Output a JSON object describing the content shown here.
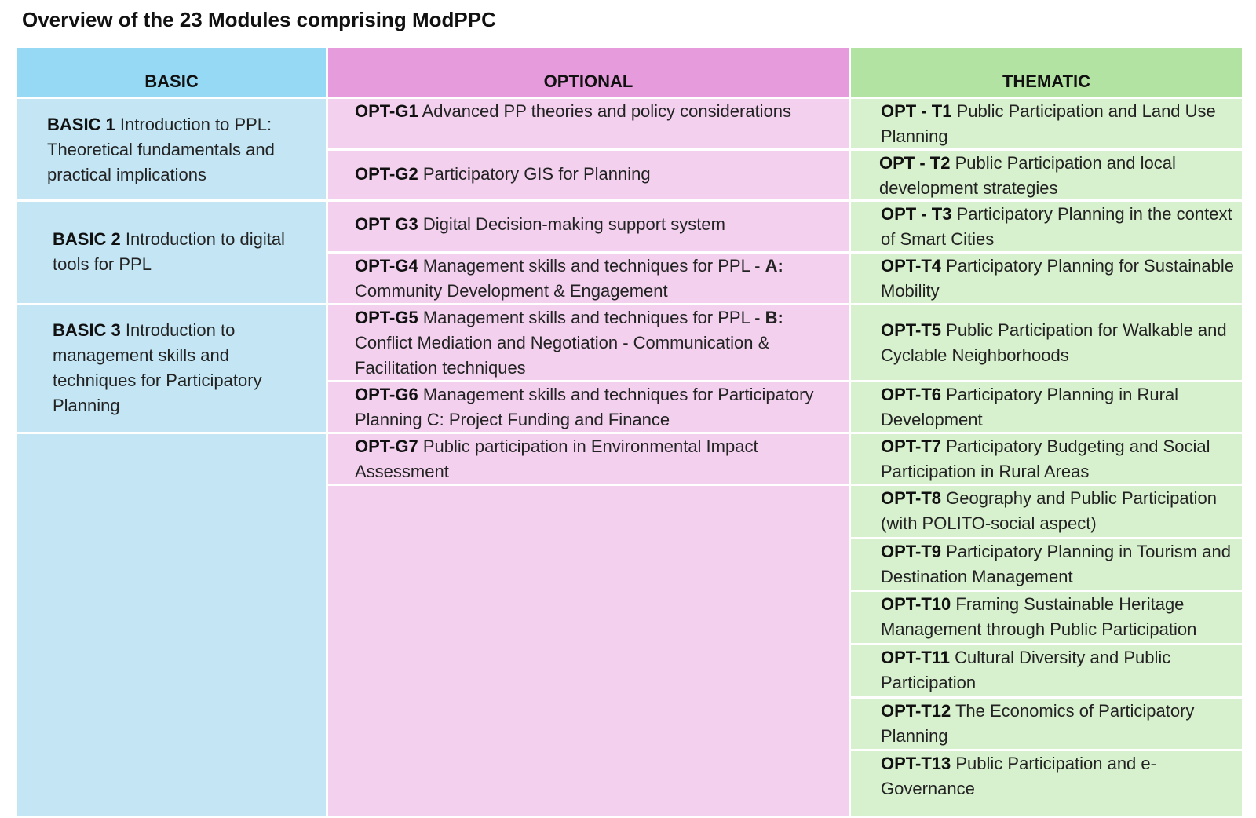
{
  "title": "Overview of the 23 Modules comprising ModPPC",
  "headers": {
    "basic": "BASIC",
    "optional": "OPTIONAL",
    "thematic": "THEMATIC"
  },
  "basic": [
    {
      "code": "BASIC 1",
      "text": "Introduction to PPL: Theoretical fundamentals and practical implications"
    },
    {
      "code": "BASIC 2",
      "text": "Introduction to digital tools for PPL"
    },
    {
      "code": "BASIC 3",
      "text": "Introduction to management skills and techniques for Participatory Planning"
    }
  ],
  "optional": [
    {
      "code": "OPT-G1",
      "text": "Advanced PP theories and policy considerations"
    },
    {
      "code": "OPT-G2",
      "text": "Participatory GIS for Planning"
    },
    {
      "code": "OPT G3",
      "text": "Digital Decision-making support system"
    },
    {
      "code": "OPT-G4",
      "text": "Management skills and techniques for PPL - ",
      "strong": "A:",
      "tail": " Community Development & Engagement"
    },
    {
      "code": "OPT-G5",
      "text": "Management skills and techniques for PPL - ",
      "strong": "B:",
      "tail": " Conflict Mediation and Negotiation - Communication & Facilitation techniques"
    },
    {
      "code": "OPT-G6",
      "text": "Management skills and techniques for Participatory Planning C: Project Funding and Finance"
    },
    {
      "code": "OPT-G7",
      "text": "Public participation in Environmental Impact Assessment"
    }
  ],
  "thematic": [
    {
      "code": "OPT - T1",
      "text": "Public Participation and Land Use Planning"
    },
    {
      "code": "OPT - T2",
      "text": "Public Participation and local development strategies"
    },
    {
      "code": "OPT - T3",
      "text": "Participatory Planning in the context of Smart Cities"
    },
    {
      "code": "OPT-T4",
      "text": "Participatory Planning for Sustainable Mobility"
    },
    {
      "code": "OPT-T5",
      "text": "Public Participation for Walkable and Cyclable Neighborhoods"
    },
    {
      "code": "OPT-T6",
      "text": "Participatory Planning in Rural Development"
    },
    {
      "code": "OPT-T7",
      "text": "Participatory Budgeting and Social Participation in Rural Areas"
    },
    {
      "code": "OPT-T8",
      "text": "Geography and Public Participation (with POLITO-social aspect)"
    },
    {
      "code": "OPT-T9",
      "text": "Participatory Planning in Tourism and Destination Management"
    },
    {
      "code": "OPT-T10",
      "text": "Framing Sustainable Heritage Management through Public Participation"
    },
    {
      "code": "OPT-T11",
      "text": "Cultural Diversity and Public Participation"
    },
    {
      "code": "OPT-T12",
      "text": "The Economics of Participatory Planning"
    },
    {
      "code": "OPT-T13",
      "text": "Public Participation and e-Governance"
    }
  ]
}
